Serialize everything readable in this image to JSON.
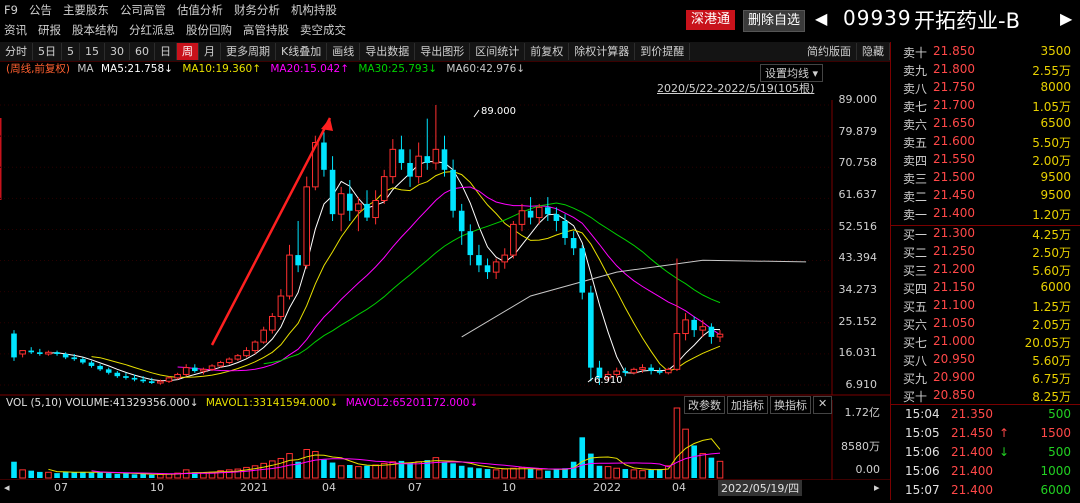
{
  "top_menu": {
    "row1": [
      "F9",
      "公告",
      "主要股东",
      "公司高管",
      "估值分析",
      "财务分析",
      "机构持股"
    ],
    "row2": [
      "资讯",
      "研报",
      "股本结构",
      "分红派息",
      "股份回购",
      "高管持股",
      "卖空成交"
    ]
  },
  "header": {
    "sh_hk_label": "深港通",
    "remove_watch_label": "删除自选",
    "prev_arrow": "◀",
    "next_arrow": "▶",
    "stock_code": "09939",
    "stock_name": "开拓药业-B"
  },
  "toolbar": {
    "items": [
      "分时",
      "5日",
      "5",
      "15",
      "30",
      "60",
      "日",
      "周",
      "月",
      "更多周期",
      "K线叠加",
      "画线",
      "导出数据",
      "导出图形",
      "区间统计",
      "前复权",
      "除权计算器",
      "到价提醒"
    ],
    "active": "周",
    "right_items": [
      "简约版面",
      "隐藏"
    ]
  },
  "ma_legend": {
    "mode": "(周线,前复权)",
    "ma_label": "MA",
    "ma5": "MA5:21.758↓",
    "ma10": "MA10:19.360↑",
    "ma20": "MA20:15.042↑",
    "ma30": "MA30:25.793↓",
    "ma60": "MA60:42.976↓"
  },
  "chart_controls": {
    "setting_label": "设置均线",
    "range_label": "2020/5/22-2022/5/19(105根)"
  },
  "price_axis": [
    "89.000",
    "79.879",
    "70.758",
    "61.637",
    "52.516",
    "43.394",
    "34.273",
    "25.152",
    "16.031",
    "6.910"
  ],
  "annotations": {
    "high": "89.000",
    "low": "6.910"
  },
  "volume_panel": {
    "legend_vol": "VOL (5,10) VOLUME:41329356.000↓",
    "legend_mavol1": "MAVOL1:33141594.000↓",
    "legend_mavol2": "MAVOL2:65201172.000↓",
    "buttons": [
      "改参数",
      "加指标",
      "换指标"
    ],
    "axis": [
      "1.72亿",
      "8580万",
      "0.00"
    ]
  },
  "x_axis": {
    "labels": [
      "07",
      "10",
      "2021",
      "04",
      "07",
      "10",
      "2022",
      "04"
    ],
    "cursor_date": "2022/05/19/四"
  },
  "order_book": {
    "asks": [
      {
        "label": "卖十",
        "price": "21.850",
        "volume": "3500"
      },
      {
        "label": "卖九",
        "price": "21.800",
        "volume": "2.55万"
      },
      {
        "label": "卖八",
        "price": "21.750",
        "volume": "8000"
      },
      {
        "label": "卖七",
        "price": "21.700",
        "volume": "1.05万"
      },
      {
        "label": "卖六",
        "price": "21.650",
        "volume": "6500"
      },
      {
        "label": "卖五",
        "price": "21.600",
        "volume": "5.50万"
      },
      {
        "label": "卖四",
        "price": "21.550",
        "volume": "2.00万"
      },
      {
        "label": "卖三",
        "price": "21.500",
        "volume": "9500"
      },
      {
        "label": "卖二",
        "price": "21.450",
        "volume": "9500"
      },
      {
        "label": "卖一",
        "price": "21.400",
        "volume": "1.20万"
      }
    ],
    "bids": [
      {
        "label": "买一",
        "price": "21.300",
        "volume": "4.25万"
      },
      {
        "label": "买二",
        "price": "21.250",
        "volume": "2.50万"
      },
      {
        "label": "买三",
        "price": "21.200",
        "volume": "5.60万"
      },
      {
        "label": "买四",
        "price": "21.150",
        "volume": "6000"
      },
      {
        "label": "买五",
        "price": "21.100",
        "volume": "1.25万"
      },
      {
        "label": "买六",
        "price": "21.050",
        "volume": "2.05万"
      },
      {
        "label": "买七",
        "price": "21.000",
        "volume": "20.05万"
      },
      {
        "label": "买八",
        "price": "20.950",
        "volume": "5.60万"
      },
      {
        "label": "买九",
        "price": "20.900",
        "volume": "6.75万"
      },
      {
        "label": "买十",
        "price": "20.850",
        "volume": "8.25万"
      }
    ]
  },
  "ticks": [
    {
      "time": "15:04",
      "price": "21.350",
      "arrow": "",
      "volume": "500",
      "color": "#ff4848",
      "vcolor": "#22d022"
    },
    {
      "time": "15:05",
      "price": "21.450",
      "arrow": "↑",
      "volume": "1500",
      "color": "#ff4848",
      "vcolor": "#ff4848"
    },
    {
      "time": "15:06",
      "price": "21.400",
      "arrow": "↓",
      "volume": "500",
      "color": "#ff4848",
      "vcolor": "#22d022"
    },
    {
      "time": "15:06",
      "price": "21.400",
      "arrow": "",
      "volume": "1000",
      "color": "#ff4848",
      "vcolor": "#22d022"
    },
    {
      "time": "15:07",
      "price": "21.400",
      "arrow": "",
      "volume": "6000",
      "color": "#ff4848",
      "vcolor": "#22d022"
    }
  ],
  "colors": {
    "up": "#ff3030",
    "down": "#00e5ff",
    "ma5": "#ffffff",
    "ma10": "#e8e000",
    "ma20": "#ff00ff",
    "ma30": "#00d000",
    "ma60": "#c8c8c8",
    "trend_arrow": "#ff2020"
  },
  "chart_data": {
    "type": "candlestick",
    "price_ylim": [
      6.91,
      89.0
    ],
    "volume_ylim": [
      0,
      172000000
    ],
    "weeks": [
      {
        "o": 22,
        "h": 23,
        "l": 14,
        "c": 15
      },
      {
        "o": 16,
        "h": 17,
        "l": 15,
        "c": 17
      },
      {
        "o": 17,
        "h": 18,
        "l": 16,
        "c": 16.5
      },
      {
        "o": 16.5,
        "h": 17.5,
        "l": 15.5,
        "c": 16
      },
      {
        "o": 16,
        "h": 17,
        "l": 15.5,
        "c": 16.5
      },
      {
        "o": 16.5,
        "h": 17,
        "l": 15.5,
        "c": 16
      },
      {
        "o": 16,
        "h": 16.5,
        "l": 14.5,
        "c": 15
      },
      {
        "o": 15,
        "h": 16,
        "l": 14,
        "c": 14.5
      },
      {
        "o": 14.5,
        "h": 15,
        "l": 13,
        "c": 13.5
      },
      {
        "o": 13.5,
        "h": 14,
        "l": 12,
        "c": 12.5
      },
      {
        "o": 12.5,
        "h": 13,
        "l": 11,
        "c": 11.5
      },
      {
        "o": 11.5,
        "h": 12,
        "l": 10,
        "c": 10.5
      },
      {
        "o": 10.5,
        "h": 11,
        "l": 9,
        "c": 9.5
      },
      {
        "o": 9.5,
        "h": 10.5,
        "l": 8.5,
        "c": 9
      },
      {
        "o": 9,
        "h": 10,
        "l": 8,
        "c": 8.5
      },
      {
        "o": 8.5,
        "h": 9.5,
        "l": 7.5,
        "c": 8
      },
      {
        "o": 8,
        "h": 9,
        "l": 7.2,
        "c": 7.5
      },
      {
        "o": 7.5,
        "h": 8.5,
        "l": 7,
        "c": 8
      },
      {
        "o": 8,
        "h": 9.5,
        "l": 7.5,
        "c": 9
      },
      {
        "o": 9,
        "h": 10.5,
        "l": 8.5,
        "c": 10
      },
      {
        "o": 10,
        "h": 13,
        "l": 9.5,
        "c": 12
      },
      {
        "o": 12,
        "h": 13,
        "l": 10.5,
        "c": 11
      },
      {
        "o": 11,
        "h": 12,
        "l": 10,
        "c": 11.5
      },
      {
        "o": 11.5,
        "h": 13,
        "l": 11,
        "c": 12.5
      },
      {
        "o": 12.5,
        "h": 14,
        "l": 12,
        "c": 13.5
      },
      {
        "o": 13.5,
        "h": 15,
        "l": 13,
        "c": 14.5
      },
      {
        "o": 14.5,
        "h": 16,
        "l": 14,
        "c": 15.5
      },
      {
        "o": 15.5,
        "h": 18,
        "l": 15,
        "c": 17
      },
      {
        "o": 17,
        "h": 20,
        "l": 16,
        "c": 19.5
      },
      {
        "o": 19.5,
        "h": 24,
        "l": 19,
        "c": 23
      },
      {
        "o": 23,
        "h": 28,
        "l": 22,
        "c": 27
      },
      {
        "o": 27,
        "h": 35,
        "l": 26,
        "c": 33
      },
      {
        "o": 33,
        "h": 48,
        "l": 32,
        "c": 45
      },
      {
        "o": 45,
        "h": 55,
        "l": 40,
        "c": 42
      },
      {
        "o": 42,
        "h": 68,
        "l": 41,
        "c": 65
      },
      {
        "o": 65,
        "h": 80,
        "l": 64,
        "c": 78
      },
      {
        "o": 78,
        "h": 81,
        "l": 68,
        "c": 70
      },
      {
        "o": 70,
        "h": 74,
        "l": 55,
        "c": 57
      },
      {
        "o": 57,
        "h": 65,
        "l": 52,
        "c": 63
      },
      {
        "o": 63,
        "h": 67,
        "l": 55,
        "c": 58
      },
      {
        "o": 58,
        "h": 62,
        "l": 52,
        "c": 60
      },
      {
        "o": 60,
        "h": 64,
        "l": 55,
        "c": 56
      },
      {
        "o": 56,
        "h": 64,
        "l": 54,
        "c": 61
      },
      {
        "o": 61,
        "h": 70,
        "l": 60,
        "c": 68
      },
      {
        "o": 68,
        "h": 79,
        "l": 66,
        "c": 76
      },
      {
        "o": 76,
        "h": 80,
        "l": 70,
        "c": 72
      },
      {
        "o": 72,
        "h": 76,
        "l": 65,
        "c": 68
      },
      {
        "o": 68,
        "h": 78,
        "l": 66,
        "c": 74
      },
      {
        "o": 74,
        "h": 85,
        "l": 70,
        "c": 72
      },
      {
        "o": 72,
        "h": 89,
        "l": 70,
        "c": 76
      },
      {
        "o": 76,
        "h": 80,
        "l": 68,
        "c": 70
      },
      {
        "o": 70,
        "h": 73,
        "l": 56,
        "c": 58
      },
      {
        "o": 58,
        "h": 60,
        "l": 48,
        "c": 52
      },
      {
        "o": 52,
        "h": 54,
        "l": 42,
        "c": 45
      },
      {
        "o": 45,
        "h": 48,
        "l": 40,
        "c": 42
      },
      {
        "o": 42,
        "h": 44,
        "l": 38,
        "c": 40
      },
      {
        "o": 40,
        "h": 44,
        "l": 38,
        "c": 43
      },
      {
        "o": 43,
        "h": 47,
        "l": 41,
        "c": 45
      },
      {
        "o": 45,
        "h": 55,
        "l": 44,
        "c": 54
      },
      {
        "o": 54,
        "h": 60,
        "l": 52,
        "c": 58
      },
      {
        "o": 58,
        "h": 62,
        "l": 54,
        "c": 56
      },
      {
        "o": 56,
        "h": 60,
        "l": 54,
        "c": 59
      },
      {
        "o": 59,
        "h": 62,
        "l": 55,
        "c": 57
      },
      {
        "o": 57,
        "h": 59,
        "l": 52,
        "c": 55
      },
      {
        "o": 55,
        "h": 57,
        "l": 48,
        "c": 50
      },
      {
        "o": 50,
        "h": 52,
        "l": 45,
        "c": 47
      },
      {
        "o": 47,
        "h": 48,
        "l": 32,
        "c": 34
      },
      {
        "o": 34,
        "h": 36,
        "l": 8,
        "c": 12
      },
      {
        "o": 12,
        "h": 14,
        "l": 6.91,
        "c": 9
      },
      {
        "o": 9,
        "h": 11,
        "l": 8,
        "c": 10
      },
      {
        "o": 10,
        "h": 12,
        "l": 9,
        "c": 11
      },
      {
        "o": 11,
        "h": 12,
        "l": 9.5,
        "c": 10.5
      },
      {
        "o": 10.5,
        "h": 12,
        "l": 10,
        "c": 11.5
      },
      {
        "o": 11.5,
        "h": 13,
        "l": 10.5,
        "c": 12
      },
      {
        "o": 12,
        "h": 13,
        "l": 10,
        "c": 11
      },
      {
        "o": 11,
        "h": 12,
        "l": 10,
        "c": 10.5
      },
      {
        "o": 10.5,
        "h": 12,
        "l": 10,
        "c": 11.5
      },
      {
        "o": 11.5,
        "h": 44,
        "l": 11,
        "c": 22
      },
      {
        "o": 22,
        "h": 28,
        "l": 20,
        "c": 26
      },
      {
        "o": 26,
        "h": 27,
        "l": 21,
        "c": 23
      },
      {
        "o": 23,
        "h": 26,
        "l": 21,
        "c": 24
      },
      {
        "o": 24,
        "h": 25,
        "l": 19,
        "c": 21
      },
      {
        "o": 21,
        "h": 23,
        "l": 19.5,
        "c": 21.8
      }
    ],
    "volumes": [
      40,
      20,
      18,
      15,
      14,
      12,
      16,
      14,
      15,
      13,
      14,
      12,
      10,
      11,
      9,
      10,
      8,
      9,
      10,
      12,
      20,
      14,
      12,
      14,
      18,
      20,
      22,
      26,
      30,
      36,
      42,
      48,
      60,
      40,
      70,
      65,
      45,
      38,
      30,
      32,
      28,
      30,
      32,
      36,
      40,
      42,
      38,
      40,
      44,
      50,
      38,
      36,
      30,
      26,
      24,
      22,
      20,
      22,
      24,
      26,
      22,
      20,
      18,
      22,
      24,
      40,
      100,
      60,
      30,
      28,
      24,
      22,
      20,
      18,
      20,
      22,
      30,
      172,
      120,
      80,
      60,
      50,
      41
    ],
    "ma5_note": "lines computed from weekly closes",
    "ma60_points": [
      [
        52,
        21
      ],
      [
        60,
        33
      ],
      [
        70,
        40
      ],
      [
        80,
        43.5
      ],
      [
        92,
        43
      ]
    ]
  }
}
